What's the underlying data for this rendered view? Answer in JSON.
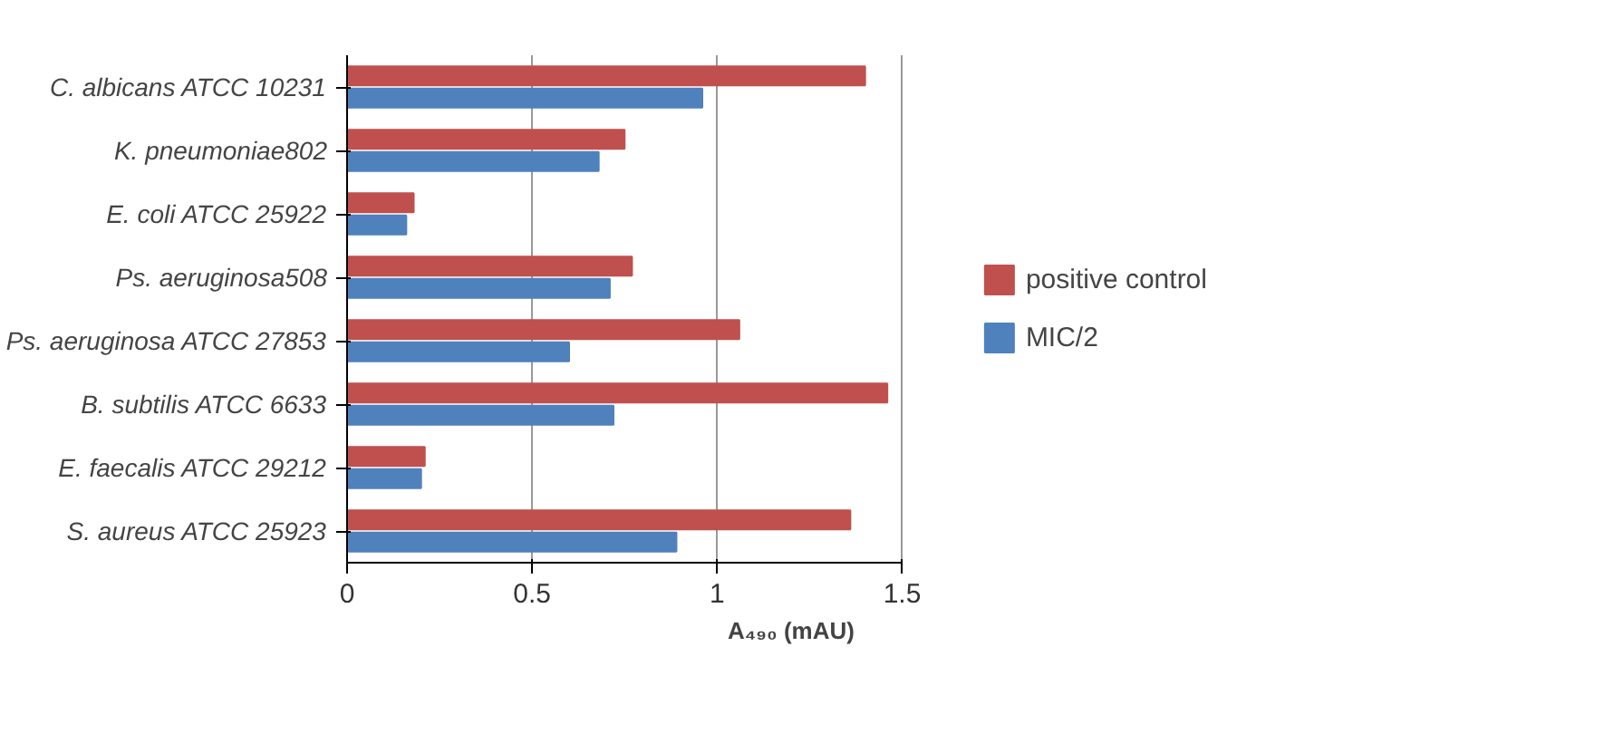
{
  "chart_data": {
    "type": "bar",
    "orientation": "horizontal",
    "xlabel": "A₄₉₀ (mAU)",
    "categories": [
      "C. albicans ATCC 10231",
      "K. pneumoniae802",
      "E. coli ATCC 25922",
      "Ps. aeruginosa508",
      "Ps. aeruginosa ATCC 27853",
      "B. subtilis ATCC 6633",
      "E. faecalis ATCC 29212",
      "S. aureus ATCC 25923"
    ],
    "series": [
      {
        "name": "positive control",
        "color": "#c0504d",
        "values": [
          1.4,
          0.75,
          0.18,
          0.77,
          1.06,
          1.46,
          0.21,
          1.36
        ]
      },
      {
        "name": "MIC/2",
        "color": "#4f81bd",
        "values": [
          0.96,
          0.68,
          0.16,
          0.71,
          0.6,
          0.72,
          0.2,
          0.89
        ]
      }
    ],
    "xlim": [
      0,
      1.5
    ],
    "xticks": [
      0,
      0.5,
      1,
      1.5
    ],
    "grid": "x",
    "legend": "right"
  }
}
